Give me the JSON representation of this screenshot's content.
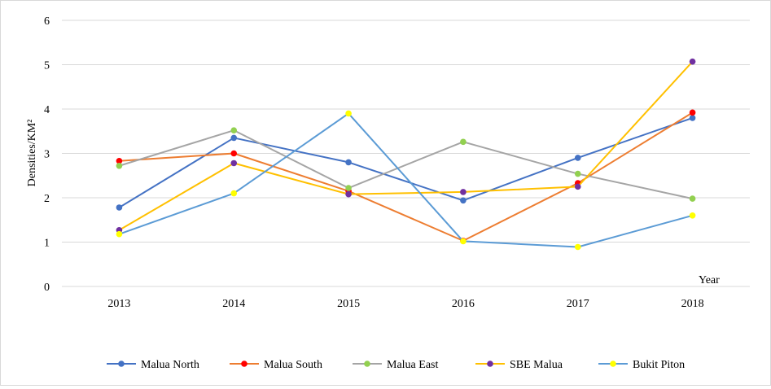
{
  "chart_data": {
    "type": "line",
    "categories": [
      "2013",
      "2014",
      "2015",
      "2016",
      "2017",
      "2018"
    ],
    "ylabel": "Densities/KM²",
    "xlabel": "Year",
    "ylim": [
      0,
      6
    ],
    "yticks": [
      0,
      1,
      2,
      3,
      4,
      5,
      6
    ],
    "grid": "horizontal",
    "legend_position": "bottom",
    "series": [
      {
        "name": "Malua North",
        "line_color": "#4472c4",
        "marker_color": "#4472c4",
        "values": [
          1.78,
          3.35,
          2.8,
          1.94,
          2.9,
          3.8
        ]
      },
      {
        "name": "Malua South",
        "line_color": "#ed7d31",
        "marker_color": "#ff0000",
        "values": [
          2.83,
          3.0,
          2.15,
          1.03,
          2.33,
          3.92
        ]
      },
      {
        "name": "Malua East",
        "line_color": "#a5a5a5",
        "marker_color": "#92d050",
        "values": [
          2.72,
          3.52,
          2.22,
          3.26,
          2.54,
          1.98
        ]
      },
      {
        "name": "SBE Malua",
        "line_color": "#ffc000",
        "marker_color": "#7030a0",
        "values": [
          1.27,
          2.78,
          2.08,
          2.13,
          2.25,
          5.07
        ]
      },
      {
        "name": "Bukit Piton",
        "line_color": "#5b9bd5",
        "marker_color": "#ffff00",
        "values": [
          1.18,
          2.1,
          3.9,
          1.02,
          0.89,
          1.6
        ]
      }
    ]
  }
}
